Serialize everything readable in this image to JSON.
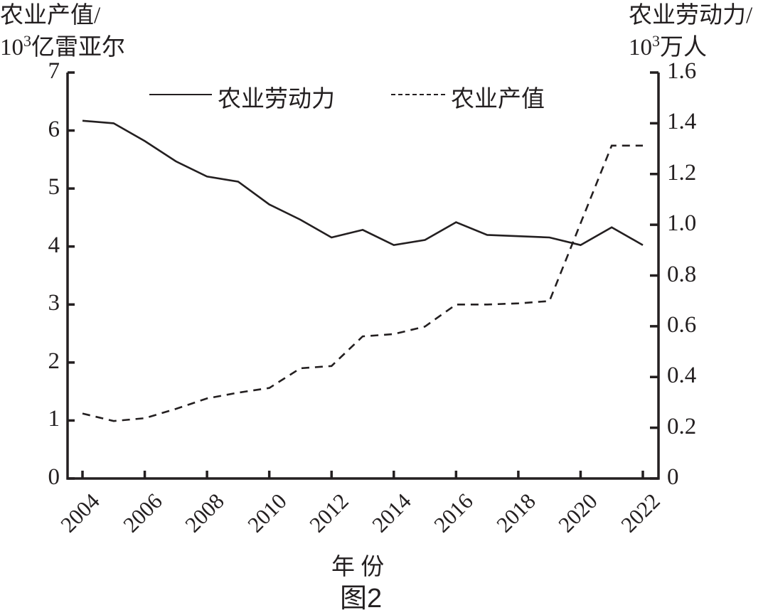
{
  "chart_data": {
    "type": "line",
    "title": "图2",
    "xlabel": "年 份",
    "ylabel_left": {
      "line1": "农业产值/",
      "line2_prefix": "10",
      "line2_sup": "3",
      "line2_suffix": "亿雷亚尔"
    },
    "ylabel_right": {
      "line1": "农业劳动力/",
      "line2_prefix": "10",
      "line2_sup": "3",
      "line2_suffix": "万人"
    },
    "x": [
      2004,
      2005,
      2006,
      2007,
      2008,
      2009,
      2010,
      2011,
      2012,
      2013,
      2014,
      2015,
      2016,
      2017,
      2018,
      2019,
      2020,
      2021,
      2022
    ],
    "x_tick_labels": [
      "2004",
      "2006",
      "2008",
      "2010",
      "2012",
      "2014",
      "2016",
      "2018",
      "2020",
      "2022"
    ],
    "y_left_ticks": [
      "0",
      "1",
      "2",
      "3",
      "4",
      "5",
      "6",
      "7"
    ],
    "y_right_ticks": [
      "0",
      "0.2",
      "0.4",
      "0.6",
      "0.8",
      "1.0",
      "1.2",
      "1.4",
      "1.6"
    ],
    "ylim_left": [
      0,
      7
    ],
    "ylim_right": [
      0,
      1.6
    ],
    "grid": false,
    "legend_position": "top-center",
    "series": [
      {
        "name": "农业劳动力",
        "axis": "right",
        "style": "solid",
        "values": [
          1.41,
          1.4,
          1.33,
          1.25,
          1.19,
          1.17,
          1.08,
          1.02,
          0.95,
          0.98,
          0.92,
          0.94,
          1.01,
          0.96,
          0.955,
          0.95,
          0.92,
          0.99,
          0.92
        ]
      },
      {
        "name": "农业产值",
        "axis": "left",
        "style": "dashed",
        "values": [
          1.12,
          0.99,
          1.04,
          1.2,
          1.38,
          1.48,
          1.56,
          1.9,
          1.94,
          2.45,
          2.49,
          2.62,
          3.0,
          3.0,
          3.02,
          3.06,
          4.4,
          5.74,
          5.74
        ]
      }
    ]
  },
  "legend": {
    "labor": "农业劳动力",
    "output": "农业产值"
  },
  "colors": {
    "line": "#231f20",
    "background": "#ffffff"
  }
}
